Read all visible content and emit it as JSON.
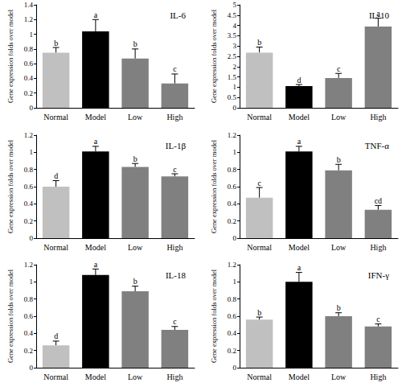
{
  "chart_data": [
    {
      "type": "bar",
      "title": "IL-6",
      "y_label": "Gene expression folds over model",
      "categories": [
        "Normal",
        "Model",
        "Low",
        "High"
      ],
      "values": [
        0.75,
        1.04,
        0.67,
        0.33
      ],
      "errors": [
        0.07,
        0.16,
        0.13,
        0.13
      ],
      "annotations": [
        "b",
        "a",
        "b",
        "c"
      ],
      "colors": [
        "#c0c0c0",
        "#000000",
        "#808080",
        "#808080"
      ],
      "ylim": [
        0,
        1.4
      ],
      "yticks": [
        0,
        0.2,
        0.4,
        0.6,
        0.8,
        1,
        1.2,
        1.4
      ],
      "grid": false
    },
    {
      "type": "bar",
      "title": "IL-10",
      "y_label": "Gene expression folds over model",
      "categories": [
        "Normal",
        "Model",
        "Low",
        "High"
      ],
      "values": [
        2.68,
        1.05,
        1.45,
        3.95
      ],
      "errors": [
        0.27,
        0.08,
        0.22,
        0.4
      ],
      "annotations": [
        "b",
        "d",
        "c",
        "a"
      ],
      "colors": [
        "#c0c0c0",
        "#000000",
        "#808080",
        "#808080"
      ],
      "ylim": [
        0,
        5
      ],
      "yticks": [
        0,
        0.5,
        1,
        1.5,
        2,
        2.5,
        3,
        3.5,
        4,
        4.5,
        5
      ],
      "grid": false
    },
    {
      "type": "bar",
      "title": "IL-1β",
      "y_label": "Gene expression folds over model",
      "categories": [
        "Normal",
        "Model",
        "Low",
        "High"
      ],
      "values": [
        0.6,
        1.01,
        0.83,
        0.72
      ],
      "errors": [
        0.07,
        0.06,
        0.04,
        0.03
      ],
      "annotations": [
        "d",
        "a",
        "b",
        "c"
      ],
      "colors": [
        "#c0c0c0",
        "#000000",
        "#808080",
        "#808080"
      ],
      "ylim": [
        0,
        1.2
      ],
      "yticks": [
        0,
        0.2,
        0.4,
        0.6,
        0.8,
        1,
        1.2
      ],
      "grid": false
    },
    {
      "type": "bar",
      "title": "TNF-α",
      "y_label": "Gene expression folds over model",
      "categories": [
        "Normal",
        "Model",
        "Low",
        "High"
      ],
      "values": [
        0.47,
        1.01,
        0.79,
        0.33
      ],
      "errors": [
        0.12,
        0.06,
        0.07,
        0.05
      ],
      "annotations": [
        "c",
        "a",
        "b",
        "cd"
      ],
      "colors": [
        "#c0c0c0",
        "#000000",
        "#808080",
        "#808080"
      ],
      "ylim": [
        0,
        1.2
      ],
      "yticks": [
        0,
        0.2,
        0.4,
        0.6,
        0.8,
        1,
        1.2
      ],
      "grid": false
    },
    {
      "type": "bar",
      "title": "IL-18",
      "y_label": "Gene expression folds over model",
      "categories": [
        "Normal",
        "Model",
        "Low",
        "High"
      ],
      "values": [
        0.26,
        1.08,
        0.89,
        0.44
      ],
      "errors": [
        0.05,
        0.07,
        0.06,
        0.04
      ],
      "annotations": [
        "d",
        "a",
        "b",
        "c"
      ],
      "colors": [
        "#c0c0c0",
        "#000000",
        "#808080",
        "#808080"
      ],
      "ylim": [
        0,
        1.2
      ],
      "yticks": [
        0,
        0.2,
        0.4,
        0.6,
        0.8,
        1,
        1.2
      ],
      "grid": false
    },
    {
      "type": "bar",
      "title": "IFN-γ",
      "y_label": "Gene expression folds over model",
      "categories": [
        "Normal",
        "Model",
        "Low",
        "High"
      ],
      "values": [
        0.56,
        1.0,
        0.6,
        0.48
      ],
      "errors": [
        0.03,
        0.11,
        0.04,
        0.03
      ],
      "annotations": [
        "b",
        "a",
        "b",
        "c"
      ],
      "colors": [
        "#c0c0c0",
        "#000000",
        "#808080",
        "#808080"
      ],
      "ylim": [
        0,
        1.2
      ],
      "yticks": [
        0,
        0.2,
        0.4,
        0.6,
        0.8,
        1,
        1.2
      ],
      "grid": false
    }
  ]
}
